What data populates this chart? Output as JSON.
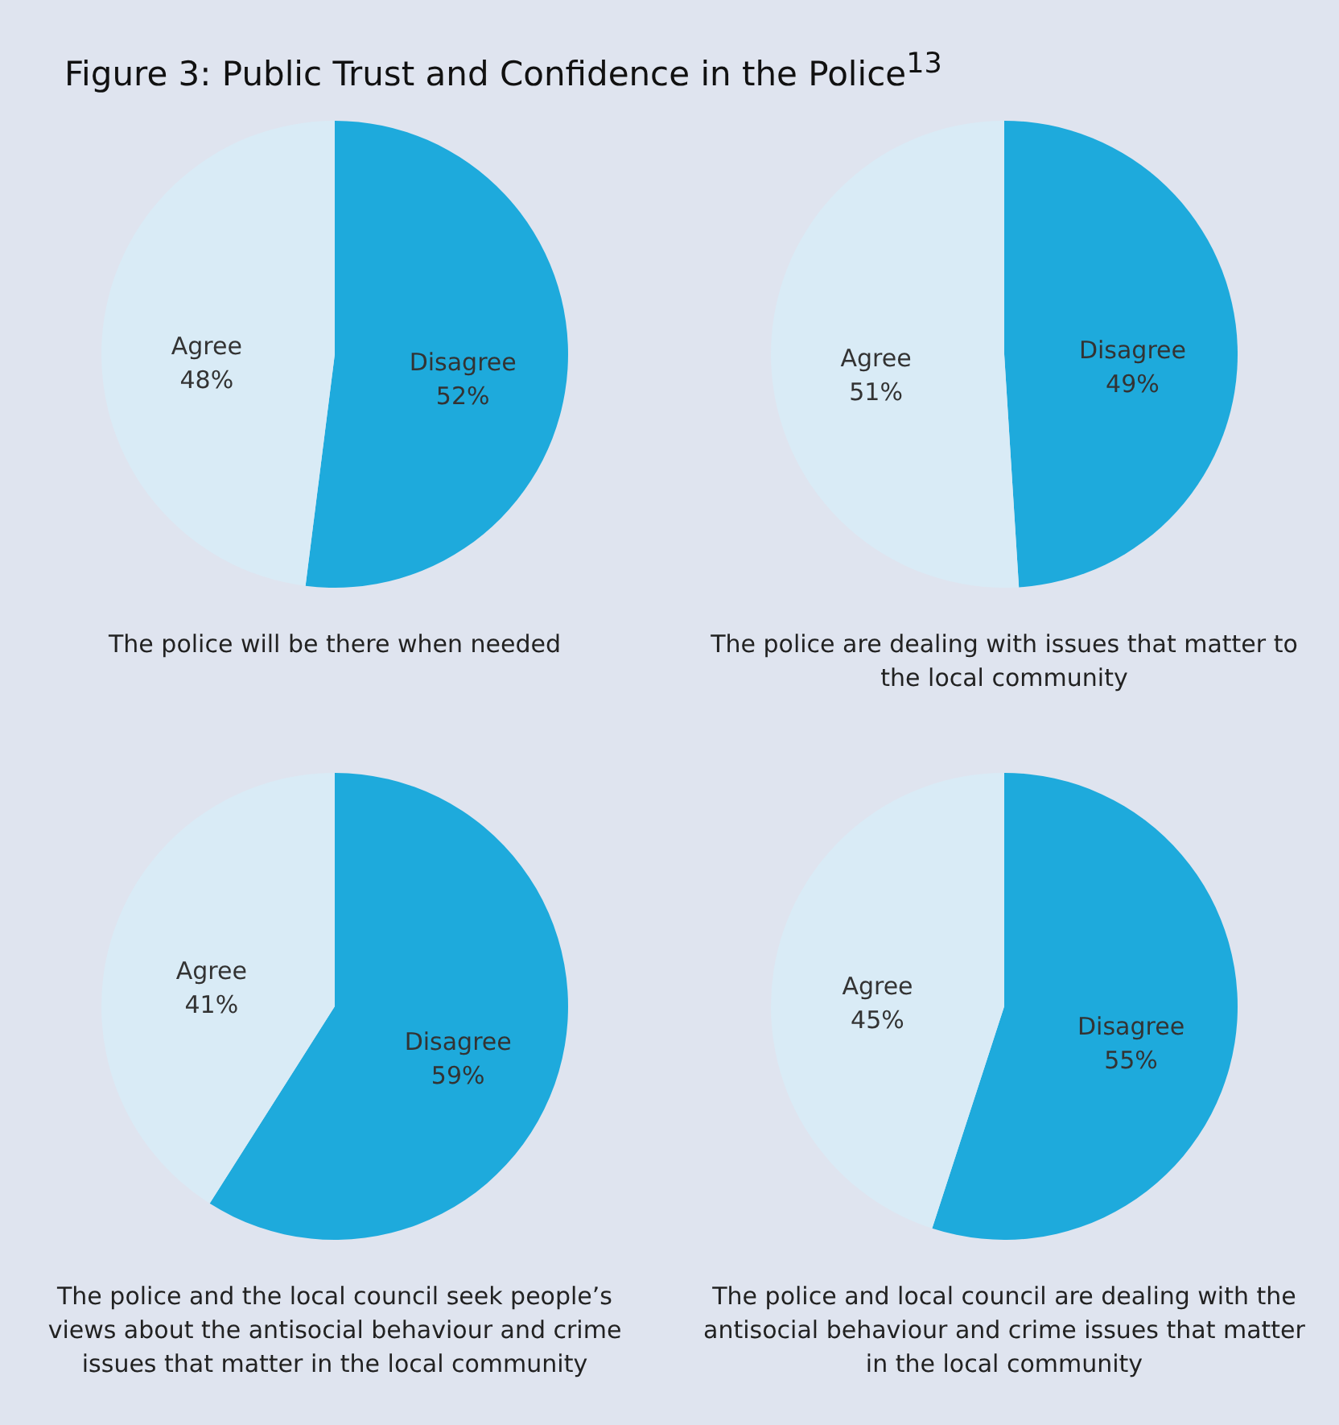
{
  "chart_data": [
    {
      "type": "pie",
      "title": "Figure 3: Public Trust and Confidence in the Police$^{13}$",
      "categories": [
        "Disagree",
        "Agree"
      ],
      "values": [
        52,
        48
      ],
      "value_labels": [
        "52%",
        "48%"
      ],
      "colors": [
        "#1eaadc",
        "#d9ebf6"
      ],
      "annotations": [
        "The police will be there when needed"
      ]
    },
    {
      "type": "pie",
      "categories": [
        "Disagree",
        "Agree"
      ],
      "values": [
        49,
        51
      ],
      "value_labels": [
        "49%",
        "51%"
      ],
      "colors": [
        "#1eaadc",
        "#d9ebf6"
      ],
      "annotations": [
        "The police are dealing with issues that matter to the local community"
      ]
    },
    {
      "type": "pie",
      "categories": [
        "Disagree",
        "Agree"
      ],
      "values": [
        59,
        41
      ],
      "value_labels": [
        "59%",
        "41%"
      ],
      "colors": [
        "#1eaadc",
        "#d9ebf6"
      ],
      "annotations": [
        "The police and the local council seek people’s views about the antisocial behaviour and crime issues that matter in the local community"
      ]
    },
    {
      "type": "pie",
      "categories": [
        "Disagree",
        "Agree"
      ],
      "values": [
        55,
        45
      ],
      "value_labels": [
        "55%",
        "45%"
      ],
      "colors": [
        "#1eaadc",
        "#d9ebf6"
      ],
      "annotations": [
        "The police and local council are dealing with the antisocial behaviour and crime issues that matter in the local community"
      ]
    }
  ]
}
